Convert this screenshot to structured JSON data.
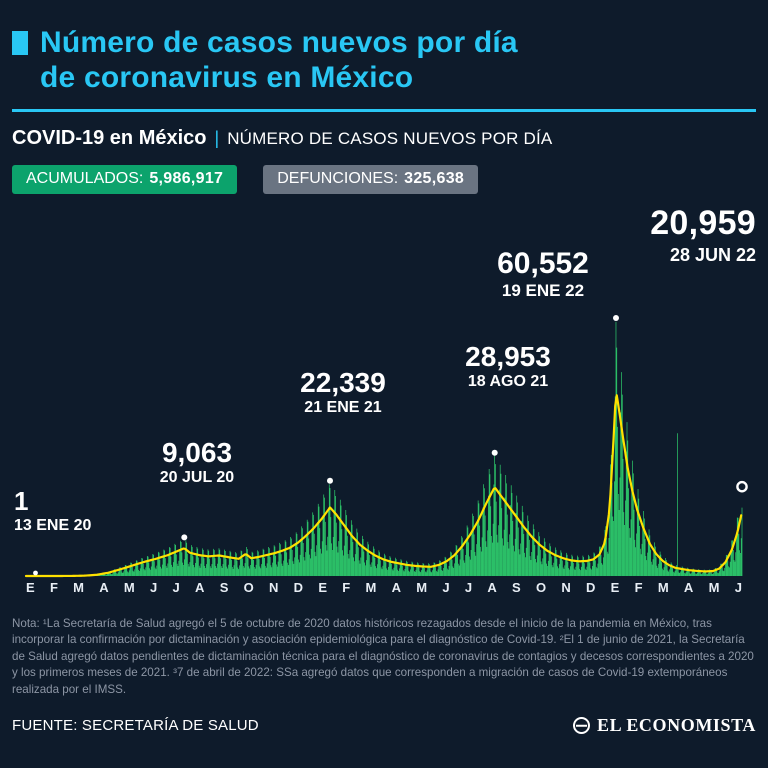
{
  "page": {
    "background": "#0e1b2b",
    "accent_cyan": "#29c7f4",
    "green_series": "#2fd36f",
    "yellow_line": "#ffe100"
  },
  "header": {
    "title_line1": "Número de casos nuevos por día",
    "title_line2": "de coronavirus en México"
  },
  "subheader": {
    "bold": "COVID-19 en México",
    "separator": "|",
    "rest": "NÚMERO DE CASOS NUEVOS POR DÍA"
  },
  "badges": {
    "accumulated": {
      "label": "ACUMULADOS:",
      "value": "5,986,917",
      "bg": "#0ca36c"
    },
    "deaths": {
      "label": "DEFUNCIONES:",
      "value": "325,638",
      "bg": "#6a7482"
    }
  },
  "chart_data": {
    "type": "area",
    "title": "COVID-19 en México — número de casos nuevos por día",
    "x_start": "ENE 2020",
    "x_end": "JUN 2022",
    "x_range_days": [
      0,
      909
    ],
    "ylim": [
      0,
      61500
    ],
    "grid": false,
    "month_letters": [
      "E",
      "F",
      "M",
      "A",
      "M",
      "J",
      "J",
      "A",
      "S",
      "O",
      "N",
      "D",
      "E",
      "F",
      "M",
      "A",
      "M",
      "J",
      "J",
      "A",
      "S",
      "O",
      "N",
      "D",
      "E",
      "F",
      "M",
      "A",
      "M",
      "J"
    ],
    "series": [
      {
        "name": "casos nuevos por día (envolvente de picos diarios)",
        "color": "#2fd36f",
        "points": [
          [
            0,
            0
          ],
          [
            40,
            0
          ],
          [
            60,
            30
          ],
          [
            75,
            120
          ],
          [
            90,
            400
          ],
          [
            105,
            1100
          ],
          [
            120,
            2200
          ],
          [
            135,
            3400
          ],
          [
            150,
            4600
          ],
          [
            165,
            5600
          ],
          [
            180,
            6800
          ],
          [
            193,
            8200
          ],
          [
            201,
            9063
          ],
          [
            208,
            7600
          ],
          [
            220,
            6800
          ],
          [
            232,
            6400
          ],
          [
            245,
            6700
          ],
          [
            258,
            6100
          ],
          [
            270,
            5600
          ],
          [
            279,
            7200
          ],
          [
            286,
            5800
          ],
          [
            295,
            6200
          ],
          [
            305,
            6800
          ],
          [
            315,
            7400
          ],
          [
            325,
            8200
          ],
          [
            335,
            9200
          ],
          [
            345,
            10800
          ],
          [
            355,
            13000
          ],
          [
            365,
            15500
          ],
          [
            375,
            18500
          ],
          [
            386,
            22339
          ],
          [
            394,
            20000
          ],
          [
            404,
            16500
          ],
          [
            414,
            13000
          ],
          [
            424,
            10200
          ],
          [
            434,
            8200
          ],
          [
            444,
            6600
          ],
          [
            454,
            5400
          ],
          [
            464,
            4600
          ],
          [
            474,
            4100
          ],
          [
            484,
            3600
          ],
          [
            494,
            3300
          ],
          [
            504,
            3100
          ],
          [
            514,
            3000
          ],
          [
            524,
            3600
          ],
          [
            534,
            4800
          ],
          [
            544,
            6800
          ],
          [
            554,
            9800
          ],
          [
            564,
            13500
          ],
          [
            574,
            18000
          ],
          [
            584,
            23500
          ],
          [
            592,
            27500
          ],
          [
            595,
            28953
          ],
          [
            602,
            26500
          ],
          [
            612,
            23000
          ],
          [
            622,
            19500
          ],
          [
            632,
            16000
          ],
          [
            642,
            12800
          ],
          [
            652,
            10200
          ],
          [
            662,
            8200
          ],
          [
            672,
            6800
          ],
          [
            682,
            5800
          ],
          [
            692,
            5100
          ],
          [
            702,
            4800
          ],
          [
            712,
            4900
          ],
          [
            720,
            5400
          ],
          [
            728,
            7000
          ],
          [
            735,
            11000
          ],
          [
            741,
            22000
          ],
          [
            746,
            45000
          ],
          [
            749,
            60552
          ],
          [
            753,
            54000
          ],
          [
            758,
            45000
          ],
          [
            764,
            35000
          ],
          [
            770,
            27500
          ],
          [
            776,
            21500
          ],
          [
            784,
            15500
          ],
          [
            792,
            10500
          ],
          [
            800,
            7200
          ],
          [
            808,
            5000
          ],
          [
            816,
            3600
          ],
          [
            824,
            2700
          ],
          [
            832,
            2300
          ],
          [
            842,
            1900
          ],
          [
            852,
            1650
          ],
          [
            862,
            1500
          ],
          [
            872,
            1600
          ],
          [
            880,
            2400
          ],
          [
            888,
            4500
          ],
          [
            896,
            8500
          ],
          [
            903,
            14000
          ],
          [
            909,
            20959
          ]
        ]
      },
      {
        "name": "promedio móvil (línea)",
        "color": "#ffe100",
        "derived_factor": 0.72
      }
    ],
    "outliers": [
      [
        827,
        33500
      ]
    ],
    "annotations": [
      {
        "value": "1",
        "date": "13 ENE 20",
        "day": 12,
        "y": 1
      },
      {
        "value": "9,063",
        "date": "20 JUL 20",
        "day": 201,
        "y": 9063
      },
      {
        "value": "22,339",
        "date": "21 ENE 21",
        "day": 386,
        "y": 22339
      },
      {
        "value": "28,953",
        "date": "18 AGO 21",
        "day": 595,
        "y": 28953
      },
      {
        "value": "60,552",
        "date": "19 ENE 22",
        "day": 749,
        "y": 60552
      },
      {
        "value": "20,959",
        "date": "28 JUN 22",
        "day": 909,
        "y": 20959,
        "highlight": true
      }
    ]
  },
  "note": {
    "text": "Nota: ¹La Secretaría de Salud agregó el 5 de octubre de 2020 datos históricos rezagados desde el inicio de la pandemia en México, tras incorporar la confirmación por dictaminación y asociación epidemiológica para el diagnóstico de Covid-19. ²El 1 de junio de 2021, la Secretaría de Salud agregó datos pendientes de dictaminación técnica para el diagnóstico de coronavirus de contagios y decesos correspondientes a 2020 y los primeros meses de 2021. ³7 de abril de 2022: SSa agregó datos que corresponden a migración de casos de Covid-19 extemporáneos realizada por el IMSS."
  },
  "footer": {
    "source": "FUENTE: SECRETARÍA DE SALUD",
    "brand": "EL ECONOMISTA"
  }
}
